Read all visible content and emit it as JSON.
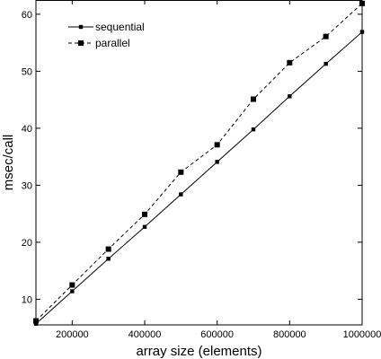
{
  "chart_data": {
    "type": "line",
    "title": "",
    "xlabel": "array size (elements)",
    "ylabel": "msec/call",
    "xlim": [
      100000,
      1000000
    ],
    "ylim": [
      5.5,
      62.5
    ],
    "xticks": [
      200000,
      400000,
      600000,
      800000,
      1000000
    ],
    "xtick_labels": [
      "200000",
      "400000",
      "600000",
      "800000",
      "1000000"
    ],
    "yticks": [
      10,
      20,
      30,
      40,
      50,
      60
    ],
    "ytick_labels": [
      "10",
      "20",
      "30",
      "40",
      "50",
      "60"
    ],
    "grid": false,
    "legend_position": "top-left",
    "x": [
      100000,
      200000,
      300000,
      400000,
      500000,
      600000,
      700000,
      800000,
      900000,
      1000000
    ],
    "series": [
      {
        "name": "sequential",
        "values": [
          5.7,
          11.4,
          17.1,
          22.7,
          28.4,
          34.1,
          39.8,
          45.6,
          51.3,
          56.9
        ],
        "line_style": "solid",
        "marker": "small-square",
        "color": "#000000"
      },
      {
        "name": "parallel",
        "values": [
          6.2,
          12.5,
          18.8,
          24.9,
          32.3,
          37.1,
          45.1,
          51.5,
          56.1,
          61.9
        ],
        "line_style": "dashed",
        "marker": "square",
        "color": "#000000"
      }
    ]
  }
}
